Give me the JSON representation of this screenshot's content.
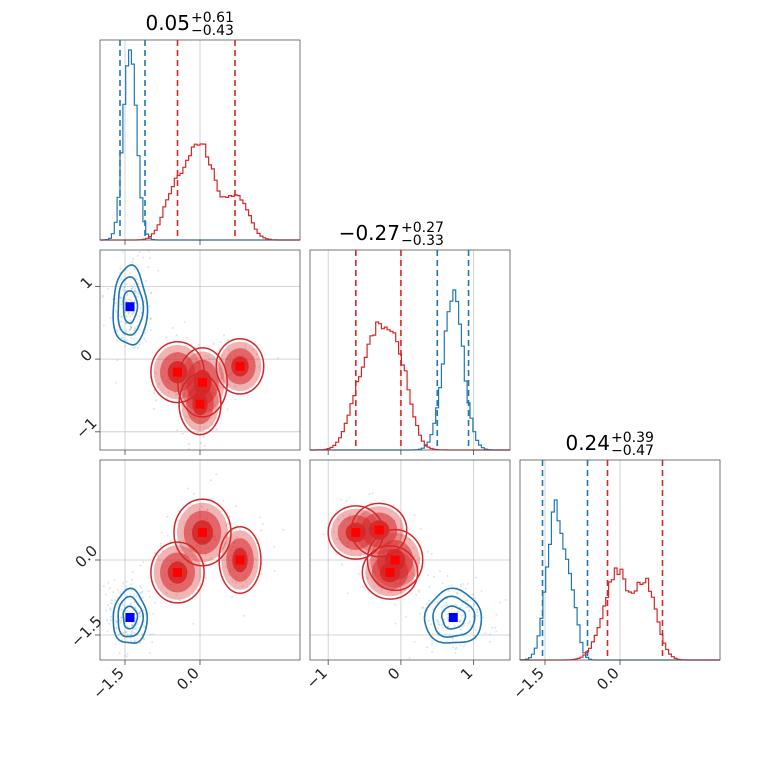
{
  "chart_data": {
    "type": "corner",
    "colors": {
      "blue": "#1f77b4",
      "red": "#d62728",
      "blue_marker": "#0000ff",
      "red_marker": "#ff0000"
    },
    "params": [
      {
        "title": {
          "main": "0.05",
          "sup": "+0.61",
          "sub": "−0.43"
        },
        "range": [
          -2.0,
          2.0
        ],
        "ticks": [
          {
            "v": -1.5,
            "label": "−1.5"
          },
          {
            "v": 0.0,
            "label": "0.0"
          }
        ]
      },
      {
        "title": {
          "main": "−0.27",
          "sup": "+0.27",
          "sub": "−0.33"
        },
        "range": [
          -1.25,
          1.5
        ],
        "ticks": [
          {
            "v": -1,
            "label": "−1"
          },
          {
            "v": 0,
            "label": "0"
          },
          {
            "v": 1,
            "label": "1"
          }
        ]
      },
      {
        "title": {
          "main": "0.24",
          "sup": "+0.39",
          "sub": "−0.47"
        },
        "range": [
          -2.0,
          2.0
        ],
        "ticks": [
          {
            "v": -1.5,
            "label": "−1.5"
          },
          {
            "v": 0.0,
            "label": "0.0"
          }
        ]
      }
    ],
    "series": [
      {
        "color": "blue",
        "marker": [
          -1.4,
          0.72,
          -1.15
        ],
        "filled": false,
        "quantiles": [
          [
            -1.6,
            -1.1
          ],
          [
            0.5,
            0.93
          ],
          [
            -1.55,
            -0.65
          ]
        ],
        "hist": [
          [
            {
              "mu": -1.4,
              "s": 0.13,
              "w": 1.0
            }
          ],
          [
            {
              "mu": 0.72,
              "s": 0.14,
              "w": 1.0
            }
          ],
          [
            {
              "mu": -1.28,
              "s": 0.18,
              "w": 1.0
            },
            {
              "mu": -0.95,
              "s": 0.12,
              "w": 0.3
            }
          ]
        ],
        "blobs": [
          [
            {
              "x": -1.4,
              "y": 0.72,
              "sx": 0.2,
              "sy": 0.32
            }
          ],
          [
            {
              "x": -1.4,
              "y": -1.15,
              "sx": 0.2,
              "sy": 0.32
            }
          ],
          [
            {
              "x": 0.72,
              "y": -1.15,
              "sx": 0.23,
              "sy": 0.32
            }
          ]
        ]
      },
      {
        "color": "red",
        "marker": [
          -0.1,
          -0.3,
          -0.1
        ],
        "filled": true,
        "quantiles": [
          [
            -0.45,
            0.7
          ],
          [
            -0.62,
            0.0
          ],
          [
            -0.25,
            0.85
          ]
        ],
        "hist": [
          [
            {
              "mu": 0.0,
              "s": 0.28,
              "w": 1.0
            },
            {
              "mu": -0.55,
              "s": 0.2,
              "w": 0.4
            },
            {
              "mu": 0.75,
              "s": 0.22,
              "w": 0.45
            }
          ],
          [
            {
              "mu": -0.25,
              "s": 0.22,
              "w": 1.0
            },
            {
              "mu": -0.6,
              "s": 0.15,
              "w": 0.25
            },
            {
              "mu": 0.05,
              "s": 0.12,
              "w": 0.25
            }
          ],
          [
            {
              "mu": -0.15,
              "s": 0.25,
              "w": 0.8
            },
            {
              "mu": 0.5,
              "s": 0.22,
              "w": 1.0
            },
            {
              "mu": 0.0,
              "s": 0.15,
              "w": 0.4
            }
          ]
        ],
        "blobs": [
          [
            {
              "x": -0.45,
              "y": -0.18,
              "sx": 0.28,
              "sy": 0.22
            },
            {
              "x": 0.05,
              "y": -0.32,
              "sx": 0.26,
              "sy": 0.25
            },
            {
              "x": 0.0,
              "y": -0.62,
              "sx": 0.22,
              "sy": 0.22
            },
            {
              "x": 0.8,
              "y": -0.1,
              "sx": 0.25,
              "sy": 0.2
            }
          ],
          [
            {
              "x": -0.45,
              "y": -0.25,
              "sx": 0.28,
              "sy": 0.32
            },
            {
              "x": 0.05,
              "y": 0.55,
              "sx": 0.3,
              "sy": 0.35
            },
            {
              "x": 0.8,
              "y": 0.0,
              "sx": 0.22,
              "sy": 0.35
            }
          ],
          [
            {
              "x": -0.62,
              "y": 0.55,
              "sx": 0.2,
              "sy": 0.28
            },
            {
              "x": -0.3,
              "y": 0.6,
              "sx": 0.2,
              "sy": 0.28
            },
            {
              "x": -0.08,
              "y": 0.0,
              "sx": 0.2,
              "sy": 0.32
            },
            {
              "x": -0.15,
              "y": -0.25,
              "sx": 0.2,
              "sy": 0.28
            }
          ]
        ]
      }
    ]
  }
}
